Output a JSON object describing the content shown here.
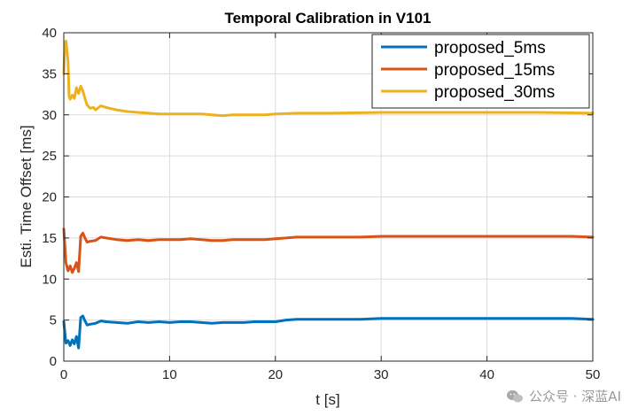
{
  "chart_data": {
    "type": "line",
    "title": "Temporal Calibration in V101",
    "xlabel": "t [s]",
    "ylabel": "Esti. Time Offset [ms]",
    "xlim": [
      0,
      50
    ],
    "ylim": [
      0,
      40
    ],
    "xticks": [
      0,
      10,
      20,
      30,
      40,
      50
    ],
    "yticks": [
      0,
      5,
      10,
      15,
      20,
      25,
      30,
      35,
      40
    ],
    "grid": true,
    "legend_position": "top-right",
    "series": [
      {
        "name": "proposed_5ms",
        "color": "#0072BD",
        "x": [
          0,
          0.2,
          0.4,
          0.6,
          0.8,
          1.0,
          1.2,
          1.4,
          1.6,
          1.8,
          2.0,
          2.2,
          2.5,
          3.0,
          3.5,
          4.0,
          5.0,
          6.0,
          7.0,
          8.0,
          9.0,
          10.0,
          11.0,
          12.0,
          13.0,
          14.0,
          15.0,
          16.0,
          17.0,
          18.0,
          19.0,
          20.0,
          21.0,
          22.0,
          23.0,
          25.0,
          28.0,
          30.0,
          35.0,
          40.0,
          42.0,
          45.0,
          48.0,
          50.0
        ],
        "y": [
          4.8,
          2.2,
          2.5,
          1.9,
          2.6,
          2.1,
          3.0,
          1.6,
          5.3,
          5.5,
          4.9,
          4.4,
          4.5,
          4.6,
          4.9,
          4.8,
          4.7,
          4.6,
          4.8,
          4.7,
          4.8,
          4.7,
          4.8,
          4.8,
          4.7,
          4.6,
          4.7,
          4.7,
          4.7,
          4.8,
          4.8,
          4.8,
          5.0,
          5.1,
          5.1,
          5.1,
          5.1,
          5.2,
          5.2,
          5.2,
          5.2,
          5.2,
          5.2,
          5.1
        ]
      },
      {
        "name": "proposed_15ms",
        "color": "#D95319",
        "x": [
          0,
          0.2,
          0.4,
          0.6,
          0.8,
          1.0,
          1.2,
          1.4,
          1.6,
          1.8,
          2.0,
          2.2,
          2.5,
          3.0,
          3.5,
          4.0,
          5.0,
          6.0,
          7.0,
          8.0,
          9.0,
          10.0,
          11.0,
          12.0,
          13.0,
          14.0,
          15.0,
          16.0,
          17.0,
          18.0,
          19.0,
          20.0,
          21.0,
          22.0,
          23.0,
          25.0,
          28.0,
          30.0,
          35.0,
          40.0,
          42.0,
          45.0,
          48.0,
          50.0
        ],
        "y": [
          16.1,
          12.0,
          11.0,
          11.6,
          10.8,
          11.3,
          12.0,
          10.9,
          15.2,
          15.6,
          15.0,
          14.5,
          14.6,
          14.7,
          15.1,
          15.0,
          14.8,
          14.7,
          14.8,
          14.7,
          14.8,
          14.8,
          14.8,
          14.9,
          14.8,
          14.7,
          14.7,
          14.8,
          14.8,
          14.8,
          14.8,
          14.9,
          15.0,
          15.1,
          15.1,
          15.1,
          15.1,
          15.2,
          15.2,
          15.2,
          15.2,
          15.2,
          15.2,
          15.1
        ]
      },
      {
        "name": "proposed_30ms",
        "color": "#EDB120",
        "x": [
          0,
          0.1,
          0.2,
          0.3,
          0.4,
          0.5,
          0.6,
          0.8,
          1.0,
          1.2,
          1.4,
          1.6,
          1.8,
          2.0,
          2.2,
          2.5,
          2.8,
          3.0,
          3.5,
          4.0,
          5.0,
          6.0,
          7.0,
          8.0,
          9.0,
          10.0,
          11.0,
          12.0,
          13.0,
          14.0,
          15.0,
          16.0,
          17.0,
          18.0,
          19.0,
          20.0,
          22.0,
          25.0,
          30.0,
          35.0,
          40.0,
          45.0,
          50.0
        ],
        "y": [
          35.0,
          38.5,
          39.0,
          37.8,
          36.5,
          32.2,
          31.9,
          32.4,
          32.0,
          33.3,
          32.6,
          33.5,
          32.9,
          32.0,
          31.2,
          30.8,
          30.9,
          30.6,
          31.1,
          30.9,
          30.6,
          30.4,
          30.3,
          30.2,
          30.1,
          30.1,
          30.1,
          30.1,
          30.1,
          30.0,
          29.9,
          30.0,
          30.0,
          30.0,
          30.0,
          30.1,
          30.2,
          30.2,
          30.3,
          30.3,
          30.3,
          30.3,
          30.2
        ]
      }
    ]
  },
  "watermark": {
    "text": "公众号 · 深蓝AI",
    "icon": "wechat-icon"
  }
}
